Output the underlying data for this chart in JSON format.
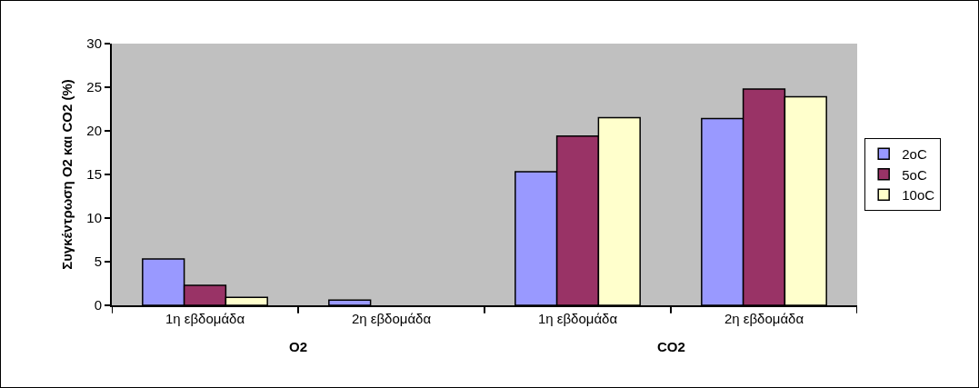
{
  "chart_data": {
    "type": "bar",
    "ylabel": "Συγκέντρωση O2 και CO2 (%)",
    "categories": [
      "1η εβδομάδα",
      "2η εβδομάδα",
      "1η εβδομάδα",
      "2η εβδομάδα"
    ],
    "series": [
      {
        "name": "2oC",
        "color": "#9999ff",
        "values": [
          5.3,
          0.6,
          15.3,
          21.4
        ]
      },
      {
        "name": "5oC",
        "color": "#993366",
        "values": [
          2.3,
          null,
          19.4,
          24.8
        ]
      },
      {
        "name": "10oC",
        "color": "#ffffcc",
        "values": [
          0.9,
          null,
          21.5,
          23.9
        ]
      }
    ],
    "annotations": [
      "O2",
      "CO2"
    ],
    "ylim": [
      0,
      30
    ],
    "yticks": [
      0,
      5,
      10,
      15,
      20,
      25,
      30
    ],
    "grid": false,
    "legend": "right"
  }
}
